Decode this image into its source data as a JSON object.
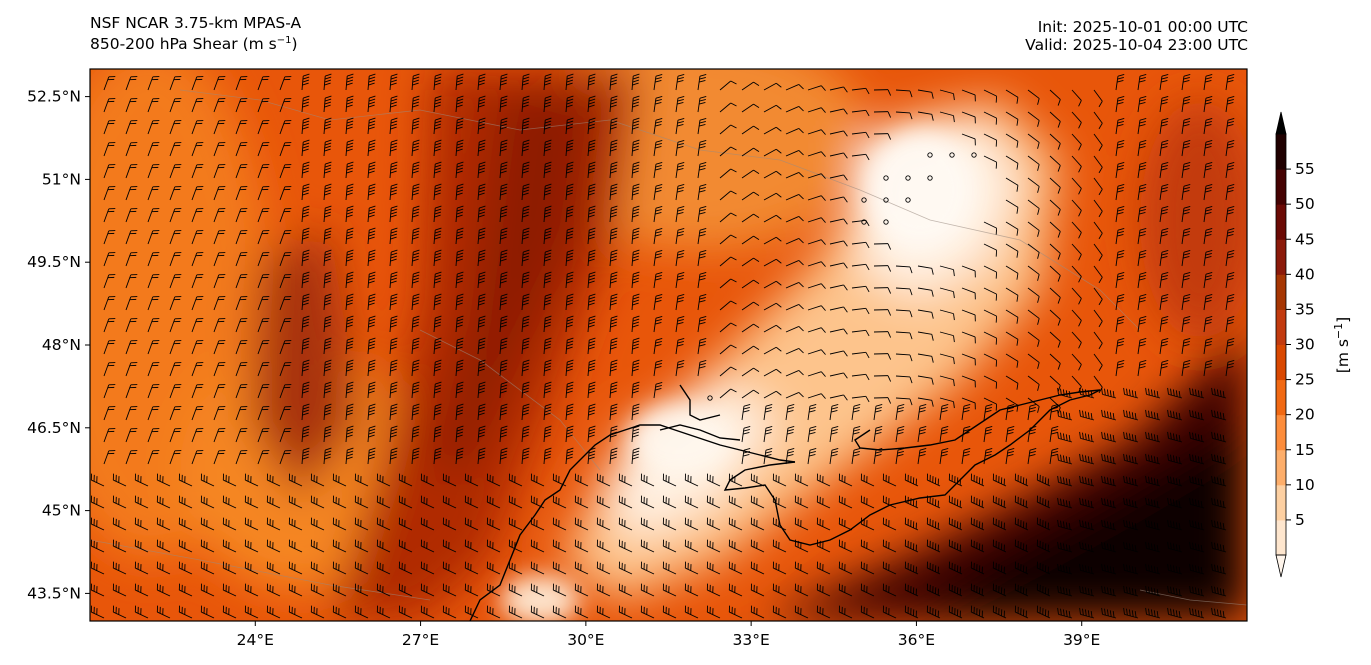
{
  "title": {
    "line1": "NSF NCAR 3.75-km MPAS-A",
    "line2_prefix": "850-200 hPa Shear (m s",
    "line2_sup": "−1",
    "line2_suffix": ")",
    "init": "Init: 2025-10-01 00:00 UTC",
    "valid": "Valid: 2025-10-04 23:00 UTC"
  },
  "map": {
    "lon_range": [
      21.0,
      42.0
    ],
    "lat_range": [
      43.0,
      53.0
    ],
    "lon_ticks": [
      "24°E",
      "27°E",
      "30°E",
      "33°E",
      "36°E",
      "39°E"
    ],
    "lon_tick_values": [
      24,
      27,
      30,
      33,
      36,
      39
    ],
    "lat_ticks": [
      "43.5°N",
      "45°N",
      "46.5°N",
      "48°N",
      "49.5°N",
      "51°N",
      "52.5°N"
    ],
    "lat_tick_values": [
      43.5,
      45,
      46.5,
      48,
      49.5,
      51,
      52.5
    ],
    "field": "850-200 hPa wind shear magnitude",
    "features": [
      "filled contours",
      "wind barbs",
      "coastlines",
      "borders"
    ]
  },
  "colorbar": {
    "label_prefix": "[m s",
    "label_sup": "−1",
    "label_suffix": "]",
    "ticks": [
      "5",
      "10",
      "15",
      "20",
      "25",
      "30",
      "35",
      "40",
      "45",
      "50",
      "55"
    ],
    "tick_values": [
      5,
      10,
      15,
      20,
      25,
      30,
      35,
      40,
      45,
      50,
      55
    ],
    "range": [
      0,
      60
    ],
    "extend": "both",
    "colors": [
      "#fff5eb",
      "#fee6ce",
      "#fdd0a2",
      "#fdae6b",
      "#fd8d3c",
      "#f16913",
      "#d94801",
      "#c23b0f",
      "#a63603",
      "#8b1a0a",
      "#6b0a05",
      "#450202",
      "#200000",
      "#000000"
    ]
  }
}
